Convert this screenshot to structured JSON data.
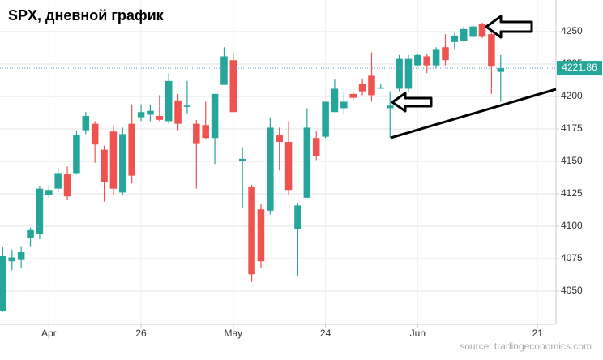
{
  "chart_data": {
    "type": "candlestick",
    "title": "SPX, дневной график",
    "source": "source: tradingeconomics.com",
    "x": [
      0,
      1,
      2,
      3,
      4,
      5,
      6,
      7,
      8,
      9,
      10,
      11,
      12,
      13,
      14,
      15,
      16,
      17,
      18,
      19,
      20,
      21,
      22,
      23,
      24,
      25,
      26,
      27,
      28,
      29,
      30,
      31,
      32,
      33,
      34,
      35,
      36,
      37,
      38,
      39,
      40,
      41,
      42,
      43,
      44,
      45,
      46,
      47,
      48,
      49,
      50,
      51,
      52,
      53,
      54
    ],
    "open": [
      4034.4,
      4073,
      4074,
      4091,
      4094,
      4124,
      4129,
      4140,
      4141,
      4174,
      4179,
      4159,
      4173,
      4126,
      4179,
      4184,
      4186,
      4185,
      4181,
      4197,
      4192,
      4179,
      4178,
      4168,
      4209,
      4228,
      4150,
      4130,
      4113,
      4112,
      4170,
      4165,
      4098,
      4122,
      4168,
      4169,
      4188,
      4191,
      4202,
      4210,
      4216,
      4206,
      4191,
      4206,
      4206,
      4224,
      4231,
      4224,
      4238,
      4242,
      4243,
      4246,
      4256,
      4248,
      4219
    ],
    "high": [
      4083.8,
      4082,
      4084,
      4099,
      4131,
      4131,
      4145,
      4146,
      4174,
      4188,
      4181,
      4162,
      4177,
      4176,
      4194,
      4194,
      4194,
      4201,
      4218,
      4202,
      4212,
      4182,
      4196,
      4202,
      4238,
      4234,
      4161,
      4132,
      4117,
      4184,
      4176,
      4181,
      4118,
      4191,
      4173,
      4196,
      4213,
      4204,
      4204,
      4214,
      4234,
      4210,
      4204,
      4232,
      4232,
      4233,
      4233,
      4238,
      4248,
      4249,
      4254,
      4255,
      4257,
      4251,
      4232
    ],
    "low": [
      4034,
      4066,
      4068,
      4084,
      4090,
      4122,
      4126,
      4120,
      4140,
      4171,
      4149,
      4119,
      4124,
      4124,
      4133,
      4181,
      4181,
      4181,
      4179,
      4174,
      4187,
      4129,
      4167,
      4148,
      4209,
      4188,
      4114,
      4057,
      4068,
      4109,
      4143,
      4124,
      4062,
      4122,
      4151,
      4168,
      4188,
      4187,
      4197,
      4201,
      4196,
      4206,
      4168,
      4204,
      4204,
      4223,
      4218,
      4222,
      4224,
      4236,
      4242,
      4245,
      4245,
      4202,
      4196
    ],
    "close": [
      4076.9,
      4076,
      4080,
      4097,
      4129,
      4128,
      4141,
      4123,
      4170,
      4185,
      4163,
      4134,
      4129,
      4171,
      4139,
      4188,
      4189,
      4182,
      4212,
      4179,
      4193,
      4164,
      4168,
      4202,
      4231,
      4188,
      4152,
      4063,
      4073,
      4176,
      4165,
      4128,
      4116,
      4176,
      4154,
      4196,
      4206,
      4196,
      4199,
      4204,
      4201,
      4207,
      4193,
      4229,
      4229,
      4232,
      4224,
      4236,
      4228,
      4247,
      4252,
      4254,
      4246,
      4223,
      4221.86
    ],
    "last_price": 4221.86,
    "up_color": "#26a69a",
    "down_color": "#ef5350",
    "xlim": [
      -0.3,
      60
    ],
    "ylim": [
      4024.4,
      4274.4
    ],
    "xticks": [
      {
        "value": 5,
        "label": "Apr"
      },
      {
        "value": 15,
        "label": "26"
      },
      {
        "value": 25,
        "label": "May"
      },
      {
        "value": 35,
        "label": "24"
      },
      {
        "value": 45,
        "label": "Jun"
      },
      {
        "value": 58,
        "label": "21"
      }
    ],
    "yticks": [
      4050,
      4075,
      4100,
      4125,
      4150,
      4175,
      4200,
      4225,
      4250
    ],
    "grid": true
  }
}
